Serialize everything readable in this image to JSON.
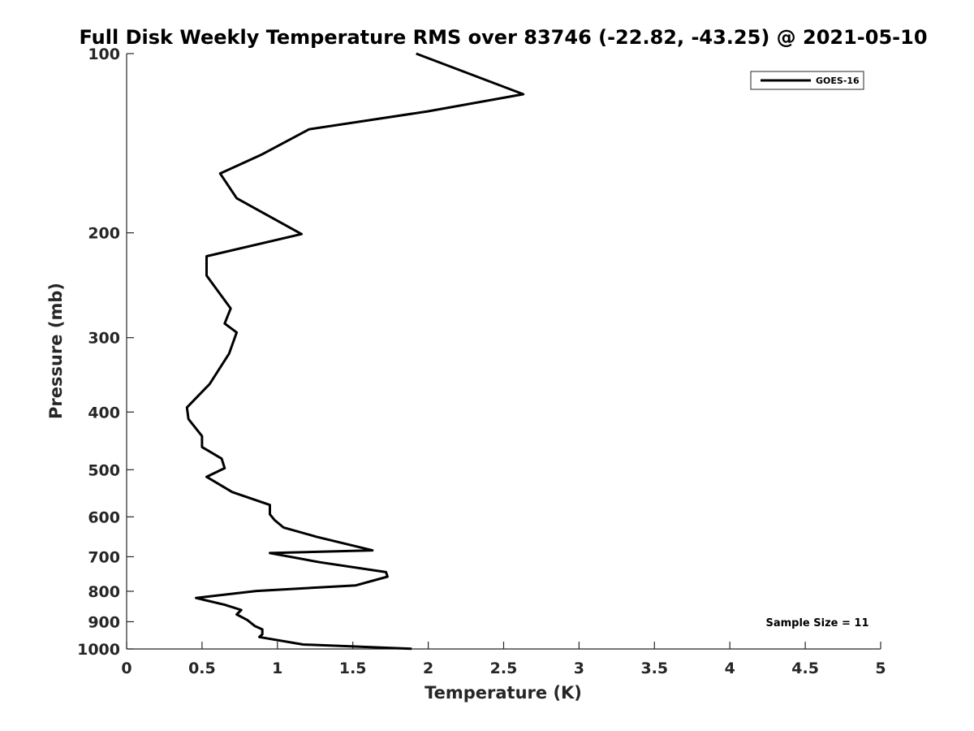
{
  "chart_data": {
    "type": "line",
    "title": "Full Disk Weekly Temperature RMS over 83746 (-22.82, -43.25) @ 2021-05-10",
    "xlabel": "Temperature (K)",
    "ylabel": "Pressure (mb)",
    "xlim": [
      0,
      5
    ],
    "ylim": [
      100,
      1000
    ],
    "yscale": "log",
    "y_reversed": true,
    "xticks": [
      0,
      0.5,
      1,
      1.5,
      2,
      2.5,
      3,
      3.5,
      4,
      4.5,
      5
    ],
    "xtick_labels": [
      "0",
      "0.5",
      "1",
      "1.5",
      "2",
      "2.5",
      "3",
      "3.5",
      "4",
      "4.5",
      "5"
    ],
    "yticks": [
      100,
      200,
      300,
      400,
      500,
      600,
      700,
      800,
      900,
      1000
    ],
    "ytick_labels": [
      "100",
      "200",
      "300",
      "400",
      "500",
      "600",
      "700",
      "800",
      "900",
      "1000"
    ],
    "grid": false,
    "legend_position": "top-right",
    "line_color": "#000000",
    "series": [
      {
        "name": "GOES-16",
        "x": [
          1.92,
          2.63,
          2.0,
          1.21,
          0.89,
          0.62,
          0.73,
          1.16,
          0.53,
          0.53,
          0.69,
          0.65,
          0.73,
          0.68,
          0.55,
          0.4,
          0.41,
          0.5,
          0.5,
          0.63,
          0.65,
          0.53,
          0.7,
          0.95,
          0.95,
          0.98,
          1.04,
          1.26,
          1.63,
          0.95,
          1.28,
          1.72,
          1.73,
          1.52,
          0.86,
          0.46,
          0.65,
          0.76,
          0.73,
          0.8,
          0.85,
          0.9,
          0.9,
          0.88,
          1.17,
          1.89
        ],
        "y": [
          100,
          117,
          125,
          134,
          148,
          159,
          175,
          201,
          219,
          236,
          268,
          284,
          294,
          319,
          359,
          393,
          411,
          439,
          458,
          479,
          497,
          514,
          545,
          573,
          594,
          607,
          625,
          648,
          683,
          690,
          715,
          743,
          756,
          782,
          799,
          821,
          843,
          860,
          875,
          894,
          915,
          927,
          945,
          955,
          983,
          999
        ]
      }
    ],
    "annotations": [
      {
        "text": "Sample Size = 11",
        "position": "bottom-right"
      }
    ]
  }
}
